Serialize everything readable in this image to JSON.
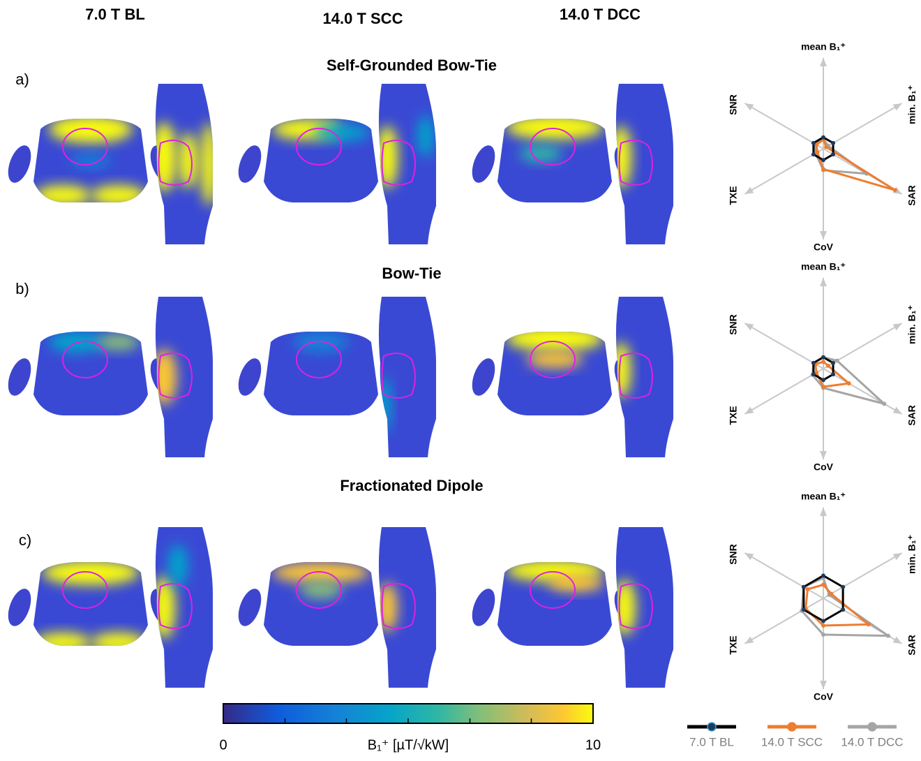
{
  "column_headers": [
    "7.0 T BL",
    "14.0 T SCC",
    "14.0 T DCC"
  ],
  "rows": [
    {
      "label": "a)",
      "title": "Self-Grounded Bow-Tie"
    },
    {
      "label": "b)",
      "title": "Bow-Tie"
    },
    {
      "label": "c)",
      "title": "Fractionated Dipole"
    }
  ],
  "colorbar": {
    "label": "B₁⁺ [µT/√kW]",
    "lim": [
      0,
      10
    ],
    "ticks": [
      0,
      10
    ],
    "minor_ticks": [
      1.67,
      3.33,
      5,
      6.67,
      8.33
    ]
  },
  "legend": [
    {
      "name": "7.0 T BL",
      "color": "#000000"
    },
    {
      "name": "14.0 T SCC",
      "color": "#ed7d31"
    },
    {
      "name": "14.0 T DCC",
      "color": "#a5a5a5"
    }
  ],
  "chart_data": [
    {
      "type": "radar",
      "axes": [
        "mean B₁⁺",
        "min. B₁⁺",
        "SAR",
        "CoV",
        "TXE",
        "SNR"
      ],
      "rlim": [
        0,
        8
      ],
      "series": [
        {
          "values": [
            1,
            1,
            1,
            1,
            1,
            1
          ]
        },
        {
          "values": [
            0.8,
            0.3,
            7.3,
            1.8,
            0.6,
            0.7
          ]
        },
        {
          "values": [
            0.9,
            0.5,
            4.4,
            1.9,
            0.8,
            0.9
          ]
        }
      ]
    },
    {
      "type": "radar",
      "axes": [
        "mean B₁⁺",
        "min. B₁⁺",
        "SAR",
        "CoV",
        "TXE",
        "SNR"
      ],
      "rlim": [
        0,
        8
      ],
      "series": [
        {
          "values": [
            1,
            1,
            1,
            1,
            1,
            1
          ]
        },
        {
          "values": [
            0.6,
            0.5,
            2.6,
            1.6,
            0.7,
            0.8
          ]
        },
        {
          "values": [
            1,
            1.4,
            6.2,
            1.7,
            1.1,
            1
          ]
        }
      ]
    },
    {
      "type": "radar",
      "axes": [
        "mean B₁⁺",
        "min. B₁⁺",
        "SAR",
        "CoV",
        "TXE",
        "SNR"
      ],
      "rlim": [
        0,
        4
      ],
      "series": [
        {
          "values": [
            1,
            1,
            1,
            1,
            1,
            1
          ]
        },
        {
          "values": [
            0.6,
            0.4,
            2.3,
            1.2,
            0.9,
            0.8
          ]
        },
        {
          "values": [
            0.9,
            0.3,
            3.3,
            1.6,
            1.1,
            1
          ]
        }
      ]
    }
  ]
}
